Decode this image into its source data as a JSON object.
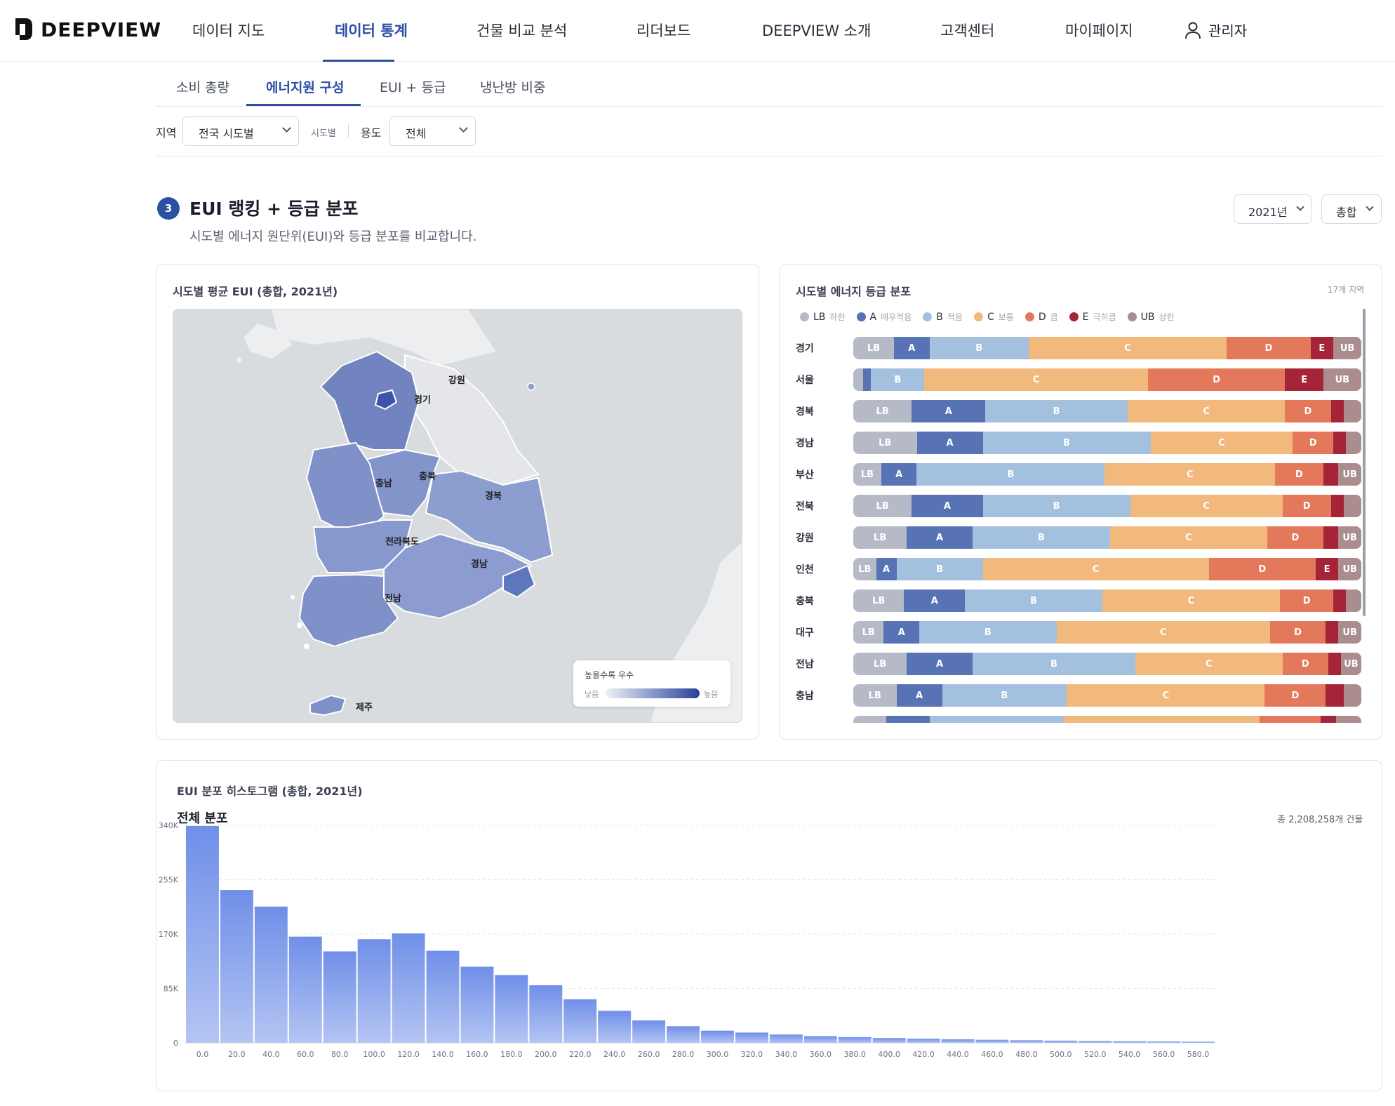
{
  "nav": {
    "brand": "DEEPVIEW",
    "items": [
      "데이터 지도",
      "데이터 통계",
      "건물 비교 분석",
      "리더보드",
      "DEEPVIEW 소개",
      "고객센터",
      "마이페이지"
    ],
    "active_index": 1,
    "user": "관리자"
  },
  "subtabs": {
    "items": [
      "소비 총량",
      "에너지원 구성",
      "EUI + 등급",
      "냉난방 비중"
    ],
    "active_index": 1
  },
  "filters": {
    "region_label": "지역",
    "region_value": "전국 시도별",
    "region_hint": "시도별",
    "use_label": "용도",
    "use_value": "전체"
  },
  "section": {
    "number": "3",
    "title": "EUI 랭킹 + 등급 분포",
    "subtitle": "시도별 에너지 원단위(EUI)와 등급 분포를 비교합니다.",
    "year_value": "2021년",
    "type_value": "총합"
  },
  "map_card": {
    "title": "시도별 평균 EUI (총합, 2021년)",
    "regions": [
      "강원",
      "경기",
      "충북",
      "충남",
      "경북",
      "전라북도",
      "경남",
      "전남",
      "제주"
    ],
    "legend_title": "높을수록 우수",
    "legend_low": "낮음",
    "legend_high": "높음",
    "colors": {
      "low": "#eef1f8",
      "high": "#27419a"
    }
  },
  "grade_card": {
    "title": "시도별 에너지 등급 분포",
    "count": "17개 지역",
    "legend": [
      {
        "code": "LB",
        "desc": "하한",
        "color": "#b5bac6"
      },
      {
        "code": "A",
        "desc": "매우적음",
        "color": "#5872b6"
      },
      {
        "code": "B",
        "desc": "적음",
        "color": "#a3c0df"
      },
      {
        "code": "C",
        "desc": "보통",
        "color": "#f2b97c"
      },
      {
        "code": "D",
        "desc": "큼",
        "color": "#e4785a"
      },
      {
        "code": "E",
        "desc": "극히큼",
        "color": "#a62437"
      },
      {
        "code": "UB",
        "desc": "상한",
        "color": "#ab8d8f"
      }
    ],
    "rows": [
      {
        "region": "경기",
        "values": [
          8,
          7,
          19.5,
          39,
          16.5,
          4.5,
          5.5
        ]
      },
      {
        "region": "서울",
        "values": [
          2,
          1.5,
          10.5,
          44,
          27,
          7.5,
          7.5
        ]
      },
      {
        "region": "경북",
        "values": [
          11.5,
          14.5,
          28,
          31,
          9,
          2.5,
          3.5
        ]
      },
      {
        "region": "경남",
        "values": [
          12.5,
          13,
          33,
          28,
          8,
          2.5,
          3
        ]
      },
      {
        "region": "부산",
        "values": [
          5.5,
          7,
          37,
          33.5,
          9.5,
          3,
          4.5
        ]
      },
      {
        "region": "전북",
        "values": [
          11.5,
          14,
          29,
          30,
          9.5,
          2.5,
          3.5
        ]
      },
      {
        "region": "강원",
        "values": [
          10.5,
          13,
          27,
          31,
          11,
          3,
          4.5
        ]
      },
      {
        "region": "인천",
        "values": [
          4.5,
          4,
          17,
          44.5,
          21,
          4.5,
          4.5
        ]
      },
      {
        "region": "충북",
        "values": [
          10,
          12,
          27,
          35,
          10.5,
          2.5,
          3
        ]
      },
      {
        "region": "대구",
        "values": [
          6,
          7,
          27,
          42,
          11,
          2.5,
          4.5
        ]
      },
      {
        "region": "전남",
        "values": [
          10.5,
          13,
          32,
          29,
          9,
          2.5,
          4
        ]
      },
      {
        "region": "충남",
        "values": [
          8.5,
          9,
          24.5,
          39,
          12,
          3.5,
          3.5
        ]
      },
      {
        "region": "",
        "values": [
          6.5,
          8.5,
          26.5,
          38.5,
          12,
          3,
          5
        ]
      }
    ],
    "show_label_min": 4
  },
  "histogram": {
    "title": "EUI 분포 히스토그램 (총합, 2021년)",
    "subtitle": "전체 분포",
    "total": "총 2,208,258개 건물"
  },
  "chart_data": {
    "type": "bar",
    "categories": [
      "0.0",
      "20.0",
      "40.0",
      "60.0",
      "80.0",
      "100.0",
      "120.0",
      "140.0",
      "160.0",
      "180.0",
      "200.0",
      "220.0",
      "240.0",
      "260.0",
      "280.0",
      "300.0",
      "320.0",
      "340.0",
      "360.0",
      "380.0",
      "400.0",
      "420.0",
      "440.0",
      "460.0",
      "480.0",
      "500.0",
      "520.0",
      "540.0",
      "560.0",
      "580.0"
    ],
    "values": [
      339000,
      239000,
      213000,
      166000,
      143000,
      162000,
      171000,
      144000,
      119000,
      106000,
      90000,
      68000,
      50000,
      35000,
      26000,
      19000,
      16000,
      13000,
      10500,
      9000,
      7500,
      6500,
      5500,
      4700,
      4000,
      3400,
      2900,
      2500,
      2100,
      1800
    ],
    "ylim": [
      0,
      340000
    ],
    "yticks": [
      {
        "value": 0,
        "label": "0"
      },
      {
        "value": 85000,
        "label": "85K"
      },
      {
        "value": 170000,
        "label": "170K"
      },
      {
        "value": 255000,
        "label": "255K"
      },
      {
        "value": 340000,
        "label": "340K"
      }
    ],
    "grid": true
  }
}
